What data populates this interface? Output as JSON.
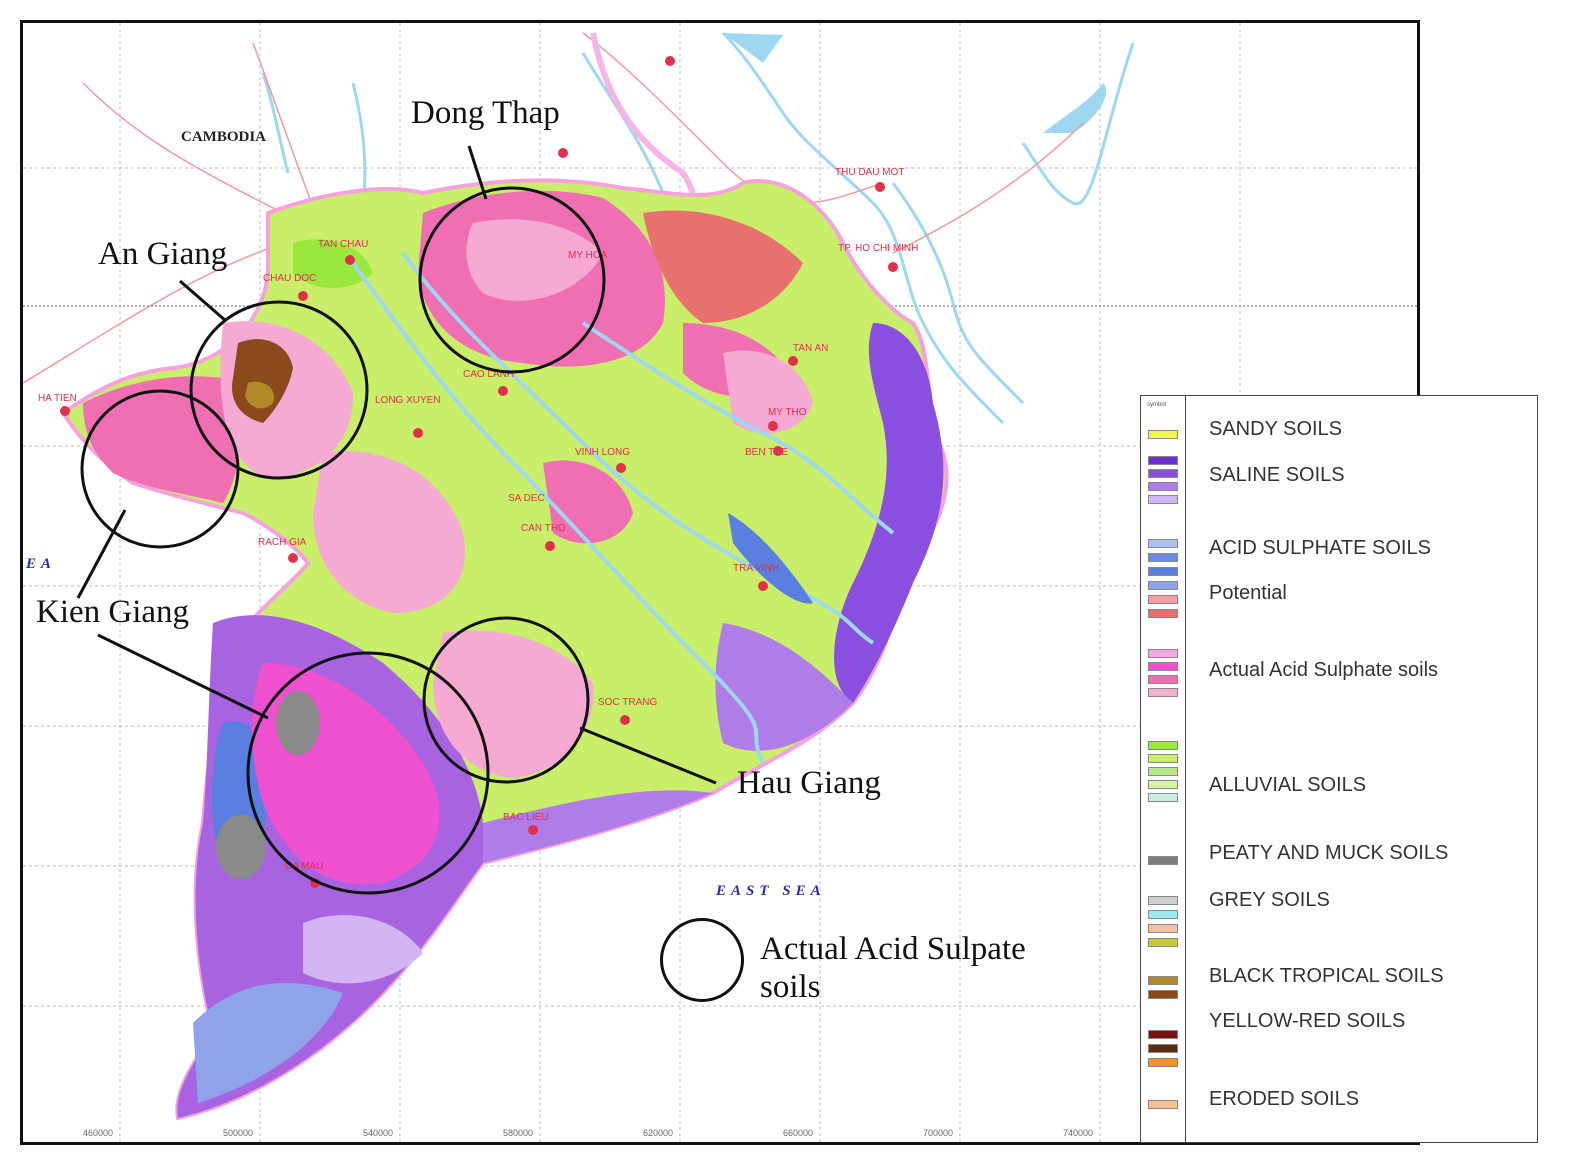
{
  "map": {
    "country_label": "CAMBODIA",
    "sea_labels": [
      "EAST SEA",
      "EA"
    ],
    "places": [
      "TAN CHAU",
      "CHAU DOC",
      "HA TIEN",
      "RACH GIA",
      "LONG XUYEN",
      "CAO LANH",
      "SA DEC",
      "VINH LONG",
      "CAN THO",
      "TRA VINH",
      "SOC TRANG",
      "BAC LIEU",
      "CA MAU",
      "MY THO",
      "BEN TRE",
      "TAN AN",
      "TP. HO CHI MINH",
      "THU DAU MOT",
      "MY HOA"
    ],
    "axis_ticks": [
      "460000",
      "500000",
      "540000",
      "580000",
      "620000",
      "660000",
      "700000",
      "740000"
    ],
    "colors": {
      "frame": "#111111",
      "alluvial": "#c8ee6a",
      "acid_pink": "#f06fb2",
      "acid_light_pink": "#f6a9d2",
      "saline_purple": "#a864e0",
      "saline_dark": "#7a3cc8",
      "potential_blue": "#8fa3ea",
      "river": "#9fd6f0",
      "road": "#ef9aa0"
    }
  },
  "annotations": {
    "dong_thap": "Dong Thap",
    "an_giang": "An Giang",
    "kien_giang": "Kien Giang",
    "hau_giang": "Hau Giang",
    "circle_key_line1": "Actual Acid Sulpate",
    "circle_key_line2": "soils"
  },
  "legend": {
    "code_header": "symbol",
    "entries": [
      {
        "label": "SANDY SOILS",
        "colors": [
          "#f2f25a"
        ]
      },
      {
        "label": "SALINE SOILS",
        "colors": [
          "#6b2fd1",
          "#8a4fe0",
          "#b07ce8",
          "#d2b5f2"
        ]
      },
      {
        "label": "ACID SULPHATE SOILS",
        "colors": [
          "#a9c0f2",
          "#6d8be6"
        ]
      },
      {
        "label": "Potential",
        "colors": [
          "#5a7fe0",
          "#8fa3ea",
          "#f2a0a0",
          "#e8706f"
        ]
      },
      {
        "label": "Actual Acid Sulphate soils",
        "colors": [
          "#f4a8e0",
          "#ee50d0",
          "#f06fb2",
          "#f6b2cc"
        ]
      },
      {
        "label": "ALLUVIAL SOILS",
        "colors": [
          "#9ae83e",
          "#c8ee6a",
          "#b6e88a",
          "#d8f4a2",
          "#c8f0e0"
        ]
      },
      {
        "label": "PEATY AND MUCK SOILS",
        "colors": [
          "#7c7c7c"
        ]
      },
      {
        "label": "GREY SOILS",
        "colors": [
          "#cfcfcf",
          "#9ce8ee",
          "#f6c0a0",
          "#c8c838"
        ]
      },
      {
        "label": "BLACK TROPICAL SOILS",
        "colors": [
          "#b08a2a",
          "#8a4a1c"
        ]
      },
      {
        "label": "YELLOW-RED SOILS",
        "colors": [
          "#7a1010",
          "#5a2c12",
          "#f2902a"
        ]
      },
      {
        "label": "ERODED SOILS",
        "colors": [
          "#f6c090"
        ]
      }
    ]
  }
}
